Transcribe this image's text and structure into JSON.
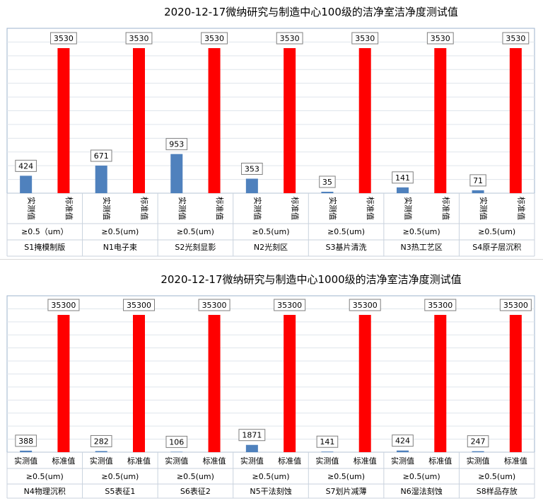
{
  "chart_data": [
    {
      "type": "bar",
      "title": "2020-12-17微纳研究与制造中心100级的洁净室洁净度测试值",
      "size_labels": [
        "≥0.5（um）",
        "≥0.5(um)",
        "≥0.5(um)",
        "≥0.5(um)",
        "≥0.5(um)",
        "≥0.5(um)",
        "≥0.5(um)"
      ],
      "categories": [
        "S1掩模制版",
        "N1电子束",
        "S2光刻显影",
        "N2光刻区",
        "S3基片清洗",
        "N3热工艺区",
        "S4原子层沉积"
      ],
      "bar_labels": [
        "实测值",
        "标准值"
      ],
      "series": [
        {
          "name": "实测值",
          "color": "#4f81bd",
          "values": [
            424,
            671,
            953,
            353,
            35,
            141,
            71
          ]
        },
        {
          "name": "标准值",
          "color": "#ff0000",
          "values": [
            3530,
            3530,
            3530,
            3530,
            3530,
            3530,
            3530
          ]
        }
      ],
      "ylim": [
        0,
        3530
      ],
      "grid": true,
      "bar_label_vertical": true
    },
    {
      "type": "bar",
      "title": "2020-12-17微纳研究与制造中心1000级的洁净室洁净度测试值",
      "size_labels": [
        "≥0.5(um)",
        "≥0.5(um)",
        "≥0.5(um)",
        "≥0.5(um)",
        "≥0.5(um)",
        "≥0.5(um)",
        "≥0.5(um)"
      ],
      "categories": [
        "N4物理沉积",
        "S5表征1",
        "S6表征2",
        "N5干法刻蚀",
        "S7划片减薄",
        "N6湿法刻蚀",
        "S8样品存放"
      ],
      "bar_labels": [
        "实测值",
        "标准值"
      ],
      "series": [
        {
          "name": "实测值",
          "color": "#4f81bd",
          "values": [
            388,
            282,
            106,
            1871,
            141,
            424,
            247
          ]
        },
        {
          "name": "标准值",
          "color": "#ff0000",
          "values": [
            35300,
            35300,
            35300,
            35300,
            35300,
            35300,
            35300
          ]
        }
      ],
      "ylim": [
        0,
        35300
      ],
      "grid": true,
      "bar_label_vertical": false
    }
  ]
}
